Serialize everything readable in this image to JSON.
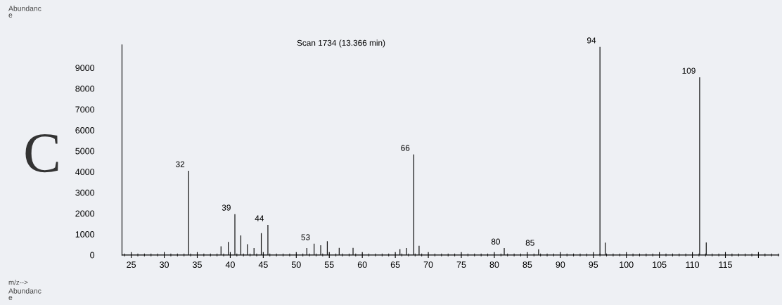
{
  "chart_data": {
    "type": "bar",
    "title": "Scan 1734 (13.366 min)",
    "x": [
      33.7,
      38.6,
      39.7,
      40.7,
      41.6,
      42.6,
      43.6,
      44.7,
      45.7,
      51.6,
      52.7,
      53.7,
      54.7,
      56.5,
      58.6,
      65.7,
      66.7,
      67.8,
      68.6,
      81.5,
      86.7,
      96.0,
      96.8,
      111.1,
      112.1
    ],
    "values": [
      4050,
      420,
      630,
      1960,
      940,
      520,
      330,
      1050,
      1450,
      330,
      540,
      470,
      660,
      340,
      340,
      280,
      330,
      4830,
      440,
      330,
      270,
      10000,
      590,
      8540,
      600
    ],
    "color": "#111111",
    "xlim": [
      23.6,
      123.1
    ],
    "ylim": [
      0,
      10100
    ],
    "xticks": [
      25,
      30,
      35,
      40,
      45,
      50,
      55,
      60,
      65,
      70,
      75,
      80,
      85,
      90,
      95,
      100,
      105,
      110,
      115,
      {
        "value": 120,
        "label": null
      }
    ],
    "yticks": [
      0,
      1000,
      2000,
      3000,
      4000,
      5000,
      6000,
      7000,
      8000,
      9000
    ],
    "annotations": [
      {
        "text": "32",
        "x": 33.7,
        "y": 4050
      },
      {
        "text": "39",
        "x": 40.7,
        "y": 1960
      },
      {
        "text": "44",
        "x": 45.7,
        "y": 1450
      },
      {
        "text": "53",
        "x": 52.7,
        "y": 540
      },
      {
        "text": "66",
        "x": 67.8,
        "y": 4830
      },
      {
        "text": "80",
        "x": 81.5,
        "y": 330
      },
      {
        "text": "85",
        "x": 86.7,
        "y": 270
      },
      {
        "text": "94",
        "x": 96.0,
        "y": 10000
      },
      {
        "text": "109",
        "x": 111.1,
        "y": 8540
      },
      "Abundanc\ne",
      "m/z-->",
      "C",
      "Abundanc\ne"
    ],
    "grid": false,
    "legend": false
  }
}
